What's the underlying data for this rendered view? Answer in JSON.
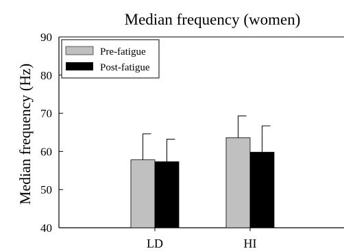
{
  "chart_data": {
    "type": "bar",
    "title": "Median frequency (women)",
    "xlabel": "",
    "ylabel": "Median frequency (Hz)",
    "ylim": [
      40,
      90
    ],
    "yticks": [
      "40",
      "50",
      "60",
      "70",
      "80",
      "90"
    ],
    "categories": [
      "LD",
      "HI"
    ],
    "series": [
      {
        "name": "Pre-fatigue",
        "values": [
          57.8,
          63.6
        ],
        "errors": [
          6.8,
          5.7
        ],
        "color": "#c0c0c0"
      },
      {
        "name": "Post-fatigue",
        "values": [
          57.3,
          59.8
        ],
        "errors": [
          5.9,
          6.9
        ],
        "color": "#000000"
      }
    ],
    "legend_position": "top-left",
    "grid": false
  }
}
